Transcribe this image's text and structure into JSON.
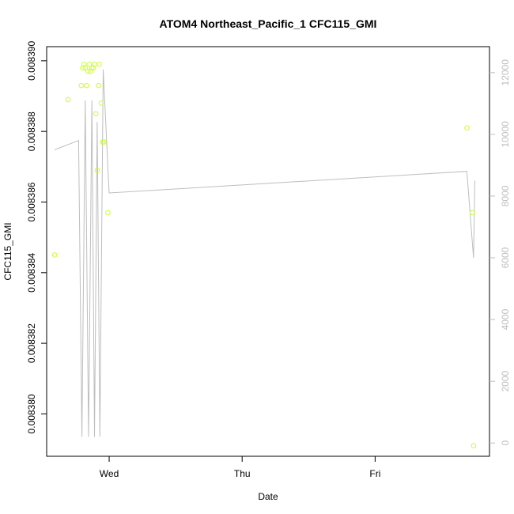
{
  "chart_data": {
    "type": "scatter",
    "title": "ATOM4 Northeast_Pacific_1 CFC115_GMI",
    "xlabel": "Date",
    "ylabel": "CFC115_GMI",
    "x_tick_labels": [
      "Wed",
      "Thu",
      "Fri"
    ],
    "x_tick_values": [
      1.0,
      2.0,
      3.0
    ],
    "xlim": [
      0.53,
      3.86
    ],
    "y_left": {
      "ticks": [
        0.00838,
        0.008382,
        0.008384,
        0.008386,
        0.008388,
        0.00839
      ],
      "tick_labels": [
        "0.008380",
        "0.008382",
        "0.008384",
        "0.008386",
        "0.008388",
        "0.008390"
      ],
      "ylim": [
        0.0083788,
        0.0083904
      ]
    },
    "y_right": {
      "ticks": [
        0,
        2000,
        4000,
        6000,
        8000,
        10000,
        12000
      ],
      "tick_labels": [
        "0",
        "2000",
        "4000",
        "6000",
        "8000",
        "10000",
        "12000"
      ],
      "ylim": [
        -430,
        12840
      ]
    },
    "series": [
      {
        "type": "scatter",
        "axis": "left",
        "color": "#ccff33",
        "points": [
          {
            "x": 0.59,
            "y": 0.0083845
          },
          {
            "x": 0.69,
            "y": 0.0083889
          },
          {
            "x": 0.79,
            "y": 0.0083893
          },
          {
            "x": 0.8,
            "y": 0.0083898
          },
          {
            "x": 0.81,
            "y": 0.0083899
          },
          {
            "x": 0.82,
            "y": 0.0083898
          },
          {
            "x": 0.83,
            "y": 0.0083893
          },
          {
            "x": 0.84,
            "y": 0.0083897
          },
          {
            "x": 0.85,
            "y": 0.0083899
          },
          {
            "x": 0.86,
            "y": 0.0083897
          },
          {
            "x": 0.87,
            "y": 0.0083898
          },
          {
            "x": 0.88,
            "y": 0.0083898
          },
          {
            "x": 0.89,
            "y": 0.0083899
          },
          {
            "x": 0.9,
            "y": 0.0083885
          },
          {
            "x": 0.91,
            "y": 0.0083869
          },
          {
            "x": 0.92,
            "y": 0.0083893
          },
          {
            "x": 0.925,
            "y": 0.0083899
          },
          {
            "x": 0.94,
            "y": 0.0083888
          },
          {
            "x": 0.95,
            "y": 0.0083877
          },
          {
            "x": 0.96,
            "y": 0.0083877
          },
          {
            "x": 0.99,
            "y": 0.0083857
          },
          {
            "x": 3.69,
            "y": 0.0083881
          },
          {
            "x": 3.73,
            "y": 0.0083857
          },
          {
            "x": 3.74,
            "y": 0.0083791
          }
        ]
      },
      {
        "type": "line",
        "axis": "right",
        "color": "#bebebe",
        "points": [
          {
            "x": 0.59,
            "y": 9500
          },
          {
            "x": 0.77,
            "y": 9800
          },
          {
            "x": 0.795,
            "y": 200
          },
          {
            "x": 0.82,
            "y": 11100
          },
          {
            "x": 0.845,
            "y": 200
          },
          {
            "x": 0.87,
            "y": 11100
          },
          {
            "x": 0.89,
            "y": 200
          },
          {
            "x": 0.91,
            "y": 10400
          },
          {
            "x": 0.93,
            "y": 200
          },
          {
            "x": 0.955,
            "y": 12100
          },
          {
            "x": 1.0,
            "y": 8100
          },
          {
            "x": 3.69,
            "y": 8800
          },
          {
            "x": 3.74,
            "y": 6000
          },
          {
            "x": 3.75,
            "y": 8500
          }
        ]
      }
    ],
    "grid": false,
    "legend": "none"
  }
}
